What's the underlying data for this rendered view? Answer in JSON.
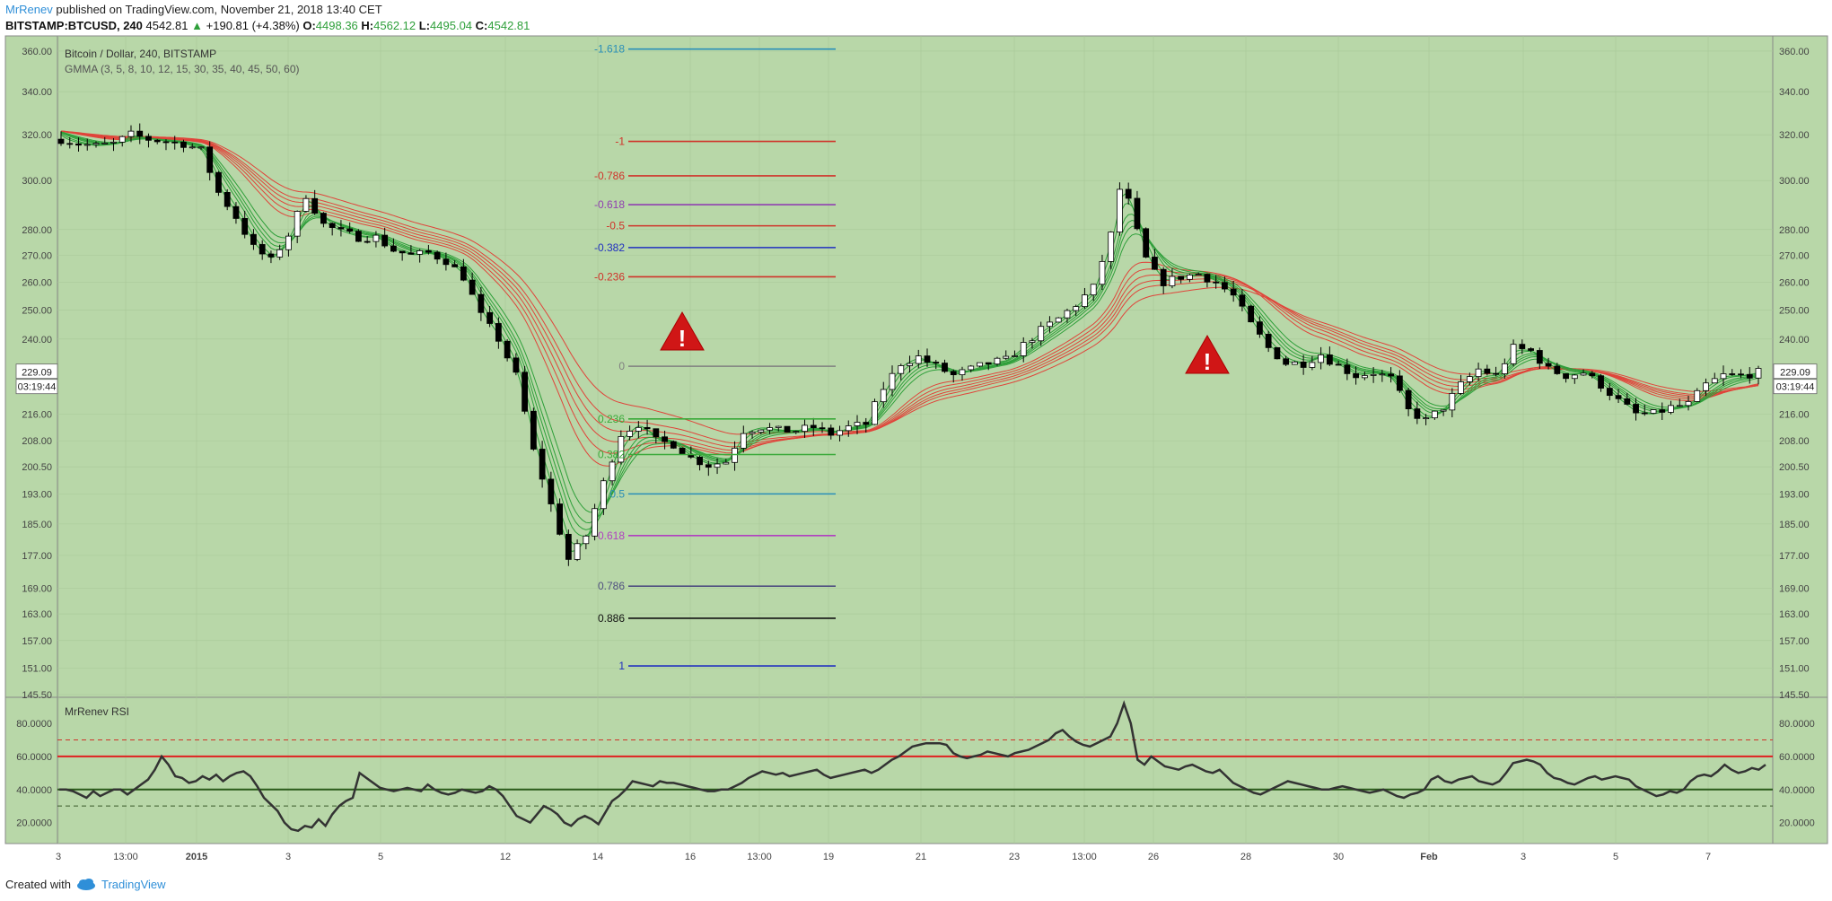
{
  "header": {
    "author": "MrRenev",
    "published": "published on TradingView.com, November 21, 2018 13:40 CET",
    "symbol": "BITSTAMP:BTCUSD, 240",
    "last": "4542.81",
    "change": "+190.81 (+4.38%)",
    "o_label": "O:",
    "o_value": "4498.36",
    "h_label": "H:",
    "h_value": "4562.12",
    "l_label": "L:",
    "l_value": "4495.04",
    "c_label": "C:",
    "c_value": "4542.81"
  },
  "footer": {
    "created_with": "Created with",
    "brand": "TradingView"
  },
  "colors": {
    "background": "#b8d7a8",
    "grid": "#a8c898",
    "bull_candle": "#ffffff",
    "bear_candle": "#000000",
    "gmma_short": "#2e9f3a",
    "gmma_long": "#e0443a",
    "rsi_line": "#333333",
    "warning": "#d01616"
  },
  "chart_data": [
    {
      "type": "candlestick",
      "title": "Bitcoin / Dollar, 240, BITSTAMP",
      "indicator": "GMMA (3, 5, 8, 10, 12, 15, 30, 35, 40, 45, 50, 60)",
      "y_ticks": [
        "360.00",
        "340.00",
        "320.00",
        "300.00",
        "280.00",
        "270.00",
        "260.00",
        "250.00",
        "240.00",
        "229.09",
        "216.00",
        "208.00",
        "200.50",
        "193.00",
        "185.00",
        "177.00",
        "169.00",
        "163.00",
        "157.00",
        "151.00",
        "145.50"
      ],
      "y_scale": "log",
      "ylim": [
        145.5,
        365
      ],
      "last_price": "229.09",
      "countdown": "03:19:44",
      "x_ticks": [
        "3",
        "13:00",
        "2015",
        "3",
        "5",
        "12",
        "14",
        "16",
        "13:00",
        "19",
        "21",
        "23",
        "13:00",
        "26",
        "28",
        "30",
        "Feb",
        "3",
        "5",
        "7"
      ],
      "fib_levels": [
        {
          "label": "-1.618",
          "value": 361,
          "color": "#2a8fb8"
        },
        {
          "label": "-1",
          "value": 317,
          "color": "#d0332a"
        },
        {
          "label": "-0.786",
          "value": 302,
          "color": "#d0332a"
        },
        {
          "label": "-0.618",
          "value": 290,
          "color": "#9040b0"
        },
        {
          "label": "-0.5",
          "value": 281.5,
          "color": "#d0332a"
        },
        {
          "label": "-0.382",
          "value": 273,
          "color": "#2030c0"
        },
        {
          "label": "-0.236",
          "value": 262,
          "color": "#d0332a"
        },
        {
          "label": "0",
          "value": 231,
          "color": "#808080"
        },
        {
          "label": "0.236",
          "value": 214.5,
          "color": "#3aaa3a"
        },
        {
          "label": "0.382",
          "value": 204,
          "color": "#3aaa3a"
        },
        {
          "label": "0.5",
          "value": 193,
          "color": "#2a8fb8"
        },
        {
          "label": "0.618",
          "value": 182,
          "color": "#b040c0"
        },
        {
          "label": "0.786",
          "value": 169.5,
          "color": "#505080"
        },
        {
          "label": "0.886",
          "value": 162,
          "color": "#111111"
        },
        {
          "label": "1",
          "value": 151.5,
          "color": "#2030c0"
        }
      ],
      "price_path": [
        [
          0,
          318
        ],
        [
          5,
          316
        ],
        [
          10,
          315
        ],
        [
          15,
          316
        ],
        [
          20,
          320
        ],
        [
          25,
          318
        ],
        [
          30,
          317
        ],
        [
          35,
          316
        ],
        [
          40,
          313
        ],
        [
          45,
          295
        ],
        [
          50,
          285
        ],
        [
          55,
          273
        ],
        [
          60,
          268
        ],
        [
          65,
          278
        ],
        [
          70,
          294
        ],
        [
          75,
          282
        ],
        [
          80,
          279
        ],
        [
          85,
          277
        ],
        [
          90,
          277
        ],
        [
          95,
          272
        ],
        [
          100,
          270
        ],
        [
          105,
          271
        ],
        [
          110,
          268
        ],
        [
          115,
          262
        ],
        [
          120,
          248
        ],
        [
          125,
          240
        ],
        [
          130,
          228
        ],
        [
          135,
          205
        ],
        [
          140,
          190
        ],
        [
          145,
          176
        ],
        [
          150,
          182
        ],
        [
          155,
          196
        ],
        [
          160,
          210
        ],
        [
          165,
          213
        ],
        [
          170,
          208
        ],
        [
          175,
          207
        ],
        [
          180,
          203
        ],
        [
          185,
          201
        ],
        [
          190,
          202
        ],
        [
          195,
          211
        ],
        [
          200,
          212
        ],
        [
          205,
          211
        ],
        [
          210,
          211
        ],
        [
          215,
          212
        ],
        [
          220,
          210
        ],
        [
          225,
          212
        ],
        [
          230,
          213
        ],
        [
          235,
          224
        ],
        [
          240,
          232
        ],
        [
          245,
          234
        ],
        [
          250,
          231
        ],
        [
          255,
          228
        ],
        [
          260,
          230
        ],
        [
          265,
          232
        ],
        [
          270,
          233
        ],
        [
          275,
          238
        ],
        [
          280,
          243
        ],
        [
          285,
          247
        ],
        [
          290,
          252
        ],
        [
          295,
          258
        ],
        [
          300,
          278
        ],
        [
          303,
          300
        ],
        [
          306,
          287
        ],
        [
          309,
          271
        ],
        [
          312,
          264
        ],
        [
          315,
          260
        ],
        [
          320,
          262
        ],
        [
          325,
          263
        ],
        [
          330,
          260
        ],
        [
          335,
          255
        ],
        [
          340,
          245
        ],
        [
          345,
          237
        ],
        [
          350,
          232
        ],
        [
          355,
          232
        ],
        [
          360,
          235
        ],
        [
          365,
          231
        ],
        [
          370,
          228
        ],
        [
          375,
          229
        ],
        [
          380,
          227
        ],
        [
          385,
          217
        ],
        [
          390,
          214
        ],
        [
          395,
          218
        ],
        [
          400,
          225
        ],
        [
          405,
          230
        ],
        [
          410,
          228
        ],
        [
          415,
          237
        ],
        [
          420,
          236
        ],
        [
          425,
          230
        ],
        [
          430,
          228
        ],
        [
          435,
          229
        ],
        [
          440,
          225
        ],
        [
          445,
          220
        ],
        [
          450,
          216
        ],
        [
          455,
          216
        ],
        [
          460,
          218
        ],
        [
          465,
          219
        ],
        [
          470,
          225
        ],
        [
          475,
          228
        ],
        [
          480,
          228
        ],
        [
          485,
          229
        ]
      ]
    },
    {
      "type": "line",
      "title": "MrRenev RSI",
      "y_ticks": [
        "80.0000",
        "60.0000",
        "40.0000",
        "20.0000"
      ],
      "ylim": [
        10,
        92
      ],
      "hlines": [
        70,
        60,
        40,
        30
      ],
      "values": [
        40,
        40,
        39,
        37,
        35,
        39,
        36,
        38,
        40,
        40,
        37,
        40,
        43,
        46,
        52,
        60,
        55,
        48,
        47,
        44,
        45,
        48,
        46,
        49,
        45,
        48,
        50,
        51,
        48,
        42,
        35,
        31,
        27,
        20,
        16,
        15,
        18,
        17,
        22,
        18,
        25,
        30,
        33,
        35,
        50,
        47,
        44,
        41,
        40,
        39,
        40,
        41,
        40,
        39,
        43,
        40,
        38,
        37,
        38,
        40,
        39,
        38,
        39,
        42,
        40,
        36,
        30,
        24,
        22,
        20,
        25,
        30,
        28,
        25,
        20,
        18,
        22,
        24,
        22,
        19,
        26,
        33,
        36,
        40,
        45,
        44,
        43,
        42,
        45,
        44,
        44,
        43,
        42,
        41,
        40,
        39,
        39,
        40,
        40,
        42,
        44,
        47,
        49,
        51,
        50,
        49,
        50,
        48,
        49,
        50,
        51,
        52,
        49,
        47,
        48,
        49,
        50,
        51,
        52,
        50,
        52,
        55,
        58,
        60,
        63,
        66,
        67,
        68,
        68,
        68,
        67,
        62,
        60,
        59,
        60,
        61,
        63,
        62,
        61,
        60,
        62,
        63,
        64,
        66,
        68,
        70,
        74,
        76,
        72,
        69,
        67,
        66,
        68,
        70,
        72,
        80,
        92,
        80,
        58,
        55,
        60,
        57,
        54,
        53,
        52,
        54,
        55,
        53,
        51,
        50,
        52,
        48,
        44,
        42,
        40,
        38,
        37,
        39,
        41,
        43,
        45,
        44,
        43,
        42,
        41,
        40,
        40,
        41,
        42,
        41,
        40,
        39,
        38,
        39,
        40,
        38,
        36,
        35,
        37,
        38,
        40,
        46,
        48,
        45,
        44,
        46,
        47,
        48,
        45,
        44,
        43,
        45,
        50,
        56,
        57,
        58,
        57,
        55,
        50,
        47,
        46,
        44,
        43,
        45,
        47,
        48,
        46,
        47,
        48,
        47,
        46,
        42,
        40,
        38,
        36,
        37,
        39,
        38,
        40,
        45,
        48,
        49,
        48,
        51,
        55,
        52,
        50,
        51,
        53,
        52,
        55
      ]
    }
  ],
  "warnings": [
    {
      "name": "warning-icon-1",
      "symbol": "!"
    },
    {
      "name": "warning-icon-2",
      "symbol": "!"
    }
  ]
}
